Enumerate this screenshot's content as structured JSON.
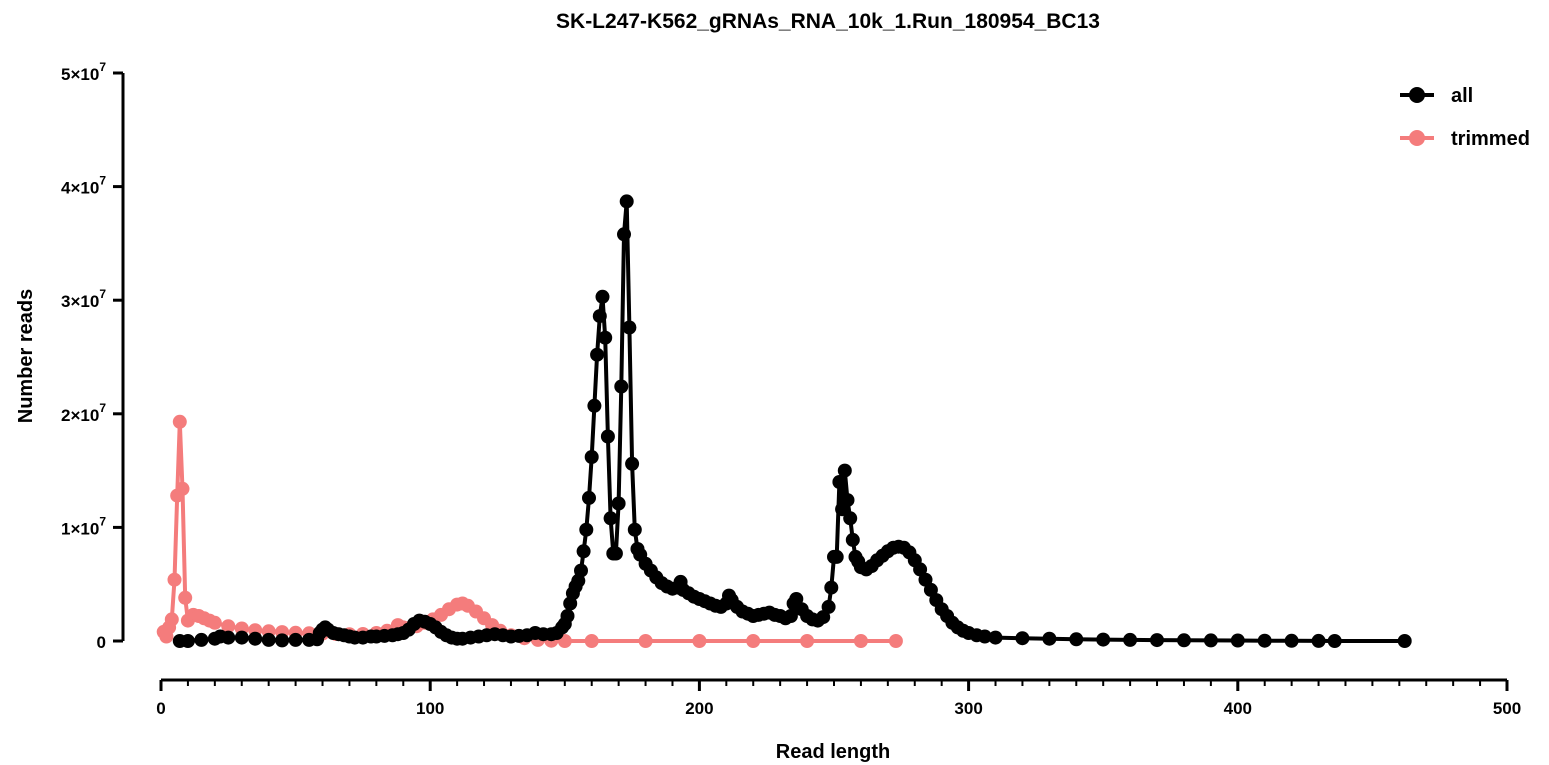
{
  "chart_data": {
    "type": "line",
    "title": "SK-L247-K562_gRNAs_RNA_10k_1.Run_180954_BC13",
    "xlabel": "Read length",
    "ylabel": "Number reads",
    "xlim": [
      0,
      500
    ],
    "ylim": [
      0,
      50000000
    ],
    "x_ticks": [
      {
        "value": 0,
        "label": "0"
      },
      {
        "value": 100,
        "label": "100"
      },
      {
        "value": 200,
        "label": "200"
      },
      {
        "value": 300,
        "label": "300"
      },
      {
        "value": 400,
        "label": "400"
      },
      {
        "value": 500,
        "label": "500"
      }
    ],
    "y_ticks": [
      {
        "value": 0,
        "label": "0",
        "exp": ""
      },
      {
        "value": 10000000,
        "label": "1×10",
        "exp": "7"
      },
      {
        "value": 20000000,
        "label": "2×10",
        "exp": "7"
      },
      {
        "value": 30000000,
        "label": "3×10",
        "exp": "7"
      },
      {
        "value": 40000000,
        "label": "4×10",
        "exp": "7"
      },
      {
        "value": 50000000,
        "label": "5×10",
        "exp": "7"
      }
    ],
    "legend_position": "top-right",
    "grid": false,
    "series": [
      {
        "name": "all",
        "color": "#000000",
        "points": [
          [
            7,
            0
          ],
          [
            10,
            0
          ],
          [
            15,
            100000
          ],
          [
            20,
            200000
          ],
          [
            22,
            400000
          ],
          [
            25,
            300000
          ],
          [
            30,
            300000
          ],
          [
            35,
            200000
          ],
          [
            40,
            100000
          ],
          [
            45,
            50000
          ],
          [
            50,
            100000
          ],
          [
            55,
            100000
          ],
          [
            58,
            150000
          ],
          [
            59,
            700000
          ],
          [
            60,
            1000000
          ],
          [
            61,
            1200000
          ],
          [
            62,
            1000000
          ],
          [
            64,
            700000
          ],
          [
            66,
            600000
          ],
          [
            68,
            500000
          ],
          [
            70,
            400000
          ],
          [
            72,
            300000
          ],
          [
            75,
            300000
          ],
          [
            78,
            400000
          ],
          [
            80,
            400000
          ],
          [
            83,
            450000
          ],
          [
            86,
            500000
          ],
          [
            88,
            600000
          ],
          [
            90,
            700000
          ],
          [
            92,
            1000000
          ],
          [
            94,
            1500000
          ],
          [
            96,
            1800000
          ],
          [
            98,
            1700000
          ],
          [
            100,
            1500000
          ],
          [
            102,
            1200000
          ],
          [
            104,
            800000
          ],
          [
            106,
            500000
          ],
          [
            108,
            300000
          ],
          [
            110,
            200000
          ],
          [
            112,
            200000
          ],
          [
            115,
            300000
          ],
          [
            118,
            400000
          ],
          [
            121,
            500000
          ],
          [
            124,
            600000
          ],
          [
            127,
            500000
          ],
          [
            130,
            400000
          ],
          [
            133,
            450000
          ],
          [
            136,
            500000
          ],
          [
            139,
            700000
          ],
          [
            142,
            600000
          ],
          [
            145,
            600000
          ],
          [
            147,
            700000
          ],
          [
            149,
            1200000
          ],
          [
            150,
            1500000
          ],
          [
            151,
            2200000
          ],
          [
            152,
            3300000
          ],
          [
            153,
            4200000
          ],
          [
            154,
            4800000
          ],
          [
            155,
            5300000
          ],
          [
            156,
            6200000
          ],
          [
            157,
            7900000
          ],
          [
            158,
            9800000
          ],
          [
            159,
            12600000
          ],
          [
            160,
            16200000
          ],
          [
            161,
            20700000
          ],
          [
            162,
            25200000
          ],
          [
            163,
            28600000
          ],
          [
            164,
            30300000
          ],
          [
            165,
            26700000
          ],
          [
            166,
            18000000
          ],
          [
            167,
            10800000
          ],
          [
            168,
            7700000
          ],
          [
            169,
            7700000
          ],
          [
            170,
            12100000
          ],
          [
            171,
            22400000
          ],
          [
            172,
            35800000
          ],
          [
            173,
            38700000
          ],
          [
            174,
            27600000
          ],
          [
            175,
            15600000
          ],
          [
            176,
            9800000
          ],
          [
            177,
            8100000
          ],
          [
            178,
            7600000
          ],
          [
            180,
            6800000
          ],
          [
            182,
            6200000
          ],
          [
            184,
            5600000
          ],
          [
            186,
            5100000
          ],
          [
            188,
            4800000
          ],
          [
            190,
            4600000
          ],
          [
            192,
            4700000
          ],
          [
            193,
            5200000
          ],
          [
            194,
            4500000
          ],
          [
            196,
            4200000
          ],
          [
            198,
            3900000
          ],
          [
            200,
            3700000
          ],
          [
            202,
            3500000
          ],
          [
            204,
            3300000
          ],
          [
            206,
            3100000
          ],
          [
            208,
            3000000
          ],
          [
            210,
            3300000
          ],
          [
            211,
            4000000
          ],
          [
            212,
            3600000
          ],
          [
            214,
            3000000
          ],
          [
            216,
            2600000
          ],
          [
            218,
            2400000
          ],
          [
            220,
            2200000
          ],
          [
            222,
            2300000
          ],
          [
            224,
            2400000
          ],
          [
            226,
            2500000
          ],
          [
            228,
            2300000
          ],
          [
            230,
            2200000
          ],
          [
            232,
            2000000
          ],
          [
            234,
            2200000
          ],
          [
            235,
            3300000
          ],
          [
            236,
            3700000
          ],
          [
            238,
            2800000
          ],
          [
            240,
            2200000
          ],
          [
            242,
            1900000
          ],
          [
            244,
            1800000
          ],
          [
            246,
            2100000
          ],
          [
            248,
            3000000
          ],
          [
            249,
            4700000
          ],
          [
            250,
            7400000
          ],
          [
            251,
            7400000
          ],
          [
            252,
            14000000
          ],
          [
            253,
            11600000
          ],
          [
            254,
            15000000
          ],
          [
            255,
            12400000
          ],
          [
            256,
            10800000
          ],
          [
            257,
            8900000
          ],
          [
            258,
            7400000
          ],
          [
            259,
            7000000
          ],
          [
            260,
            6500000
          ],
          [
            262,
            6300000
          ],
          [
            264,
            6600000
          ],
          [
            266,
            7100000
          ],
          [
            268,
            7500000
          ],
          [
            270,
            7900000
          ],
          [
            272,
            8200000
          ],
          [
            274,
            8300000
          ],
          [
            276,
            8200000
          ],
          [
            278,
            7800000
          ],
          [
            280,
            7100000
          ],
          [
            282,
            6300000
          ],
          [
            284,
            5400000
          ],
          [
            286,
            4500000
          ],
          [
            288,
            3600000
          ],
          [
            290,
            2800000
          ],
          [
            292,
            2200000
          ],
          [
            294,
            1600000
          ],
          [
            296,
            1200000
          ],
          [
            298,
            900000
          ],
          [
            300,
            700000
          ],
          [
            303,
            500000
          ],
          [
            306,
            400000
          ],
          [
            310,
            300000
          ],
          [
            320,
            250000
          ],
          [
            330,
            200000
          ],
          [
            340,
            150000
          ],
          [
            350,
            120000
          ],
          [
            360,
            100000
          ],
          [
            370,
            80000
          ],
          [
            380,
            60000
          ],
          [
            390,
            50000
          ],
          [
            400,
            40000
          ],
          [
            410,
            30000
          ],
          [
            420,
            20000
          ],
          [
            430,
            10000
          ],
          [
            436,
            0
          ],
          [
            462,
            0
          ]
        ]
      },
      {
        "name": "trimmed",
        "color": "#F47C7C",
        "points": [
          [
            1,
            800000
          ],
          [
            2,
            400000
          ],
          [
            3,
            1200000
          ],
          [
            4,
            1900000
          ],
          [
            5,
            5400000
          ],
          [
            6,
            12800000
          ],
          [
            7,
            19300000
          ],
          [
            8,
            13400000
          ],
          [
            9,
            3800000
          ],
          [
            10,
            1800000
          ],
          [
            12,
            2300000
          ],
          [
            14,
            2200000
          ],
          [
            16,
            2000000
          ],
          [
            18,
            1800000
          ],
          [
            20,
            1600000
          ],
          [
            25,
            1300000
          ],
          [
            30,
            1100000
          ],
          [
            35,
            950000
          ],
          [
            40,
            850000
          ],
          [
            45,
            780000
          ],
          [
            50,
            720000
          ],
          [
            55,
            680000
          ],
          [
            60,
            650000
          ],
          [
            65,
            620000
          ],
          [
            70,
            600000
          ],
          [
            75,
            620000
          ],
          [
            80,
            700000
          ],
          [
            84,
            900000
          ],
          [
            88,
            1400000
          ],
          [
            90,
            1200000
          ],
          [
            92,
            1100000
          ],
          [
            95,
            1300000
          ],
          [
            98,
            1600000
          ],
          [
            101,
            1900000
          ],
          [
            104,
            2300000
          ],
          [
            107,
            2800000
          ],
          [
            110,
            3200000
          ],
          [
            112,
            3300000
          ],
          [
            114,
            3100000
          ],
          [
            117,
            2600000
          ],
          [
            120,
            2000000
          ],
          [
            123,
            1400000
          ],
          [
            126,
            900000
          ],
          [
            130,
            500000
          ],
          [
            135,
            250000
          ],
          [
            140,
            100000
          ],
          [
            145,
            30000
          ],
          [
            150,
            0
          ],
          [
            160,
            0
          ],
          [
            180,
            0
          ],
          [
            200,
            0
          ],
          [
            220,
            0
          ],
          [
            240,
            0
          ],
          [
            260,
            0
          ],
          [
            273,
            0
          ]
        ]
      }
    ]
  }
}
